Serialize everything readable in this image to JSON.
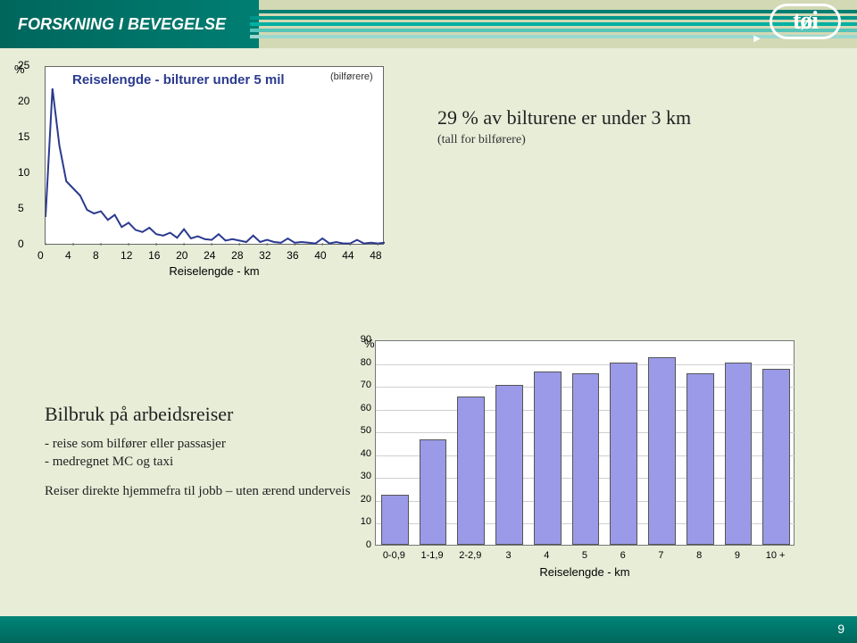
{
  "header": {
    "title": "FORSKNING I BEVEGELSE",
    "logo_text": "tøi",
    "stripe_colors": [
      "#007e72",
      "#00968a",
      "#00b0a2",
      "#55c4b9",
      "#9ad8d0"
    ]
  },
  "line_chart": {
    "type": "line",
    "title": "Reiselengde - bilturer under 5 mil",
    "subtitle_box": "(bilførere)",
    "y_pct_symbol": "%",
    "y_ticks": [
      0,
      5,
      10,
      15,
      20,
      25
    ],
    "ylim": [
      0,
      25
    ],
    "x_ticks": [
      0,
      4,
      8,
      12,
      16,
      20,
      24,
      28,
      32,
      36,
      40,
      44,
      48
    ],
    "xlim": [
      0,
      49
    ],
    "x_axis_title": "Reiselengde - km",
    "line_color": "#2b3a8f",
    "line_width": 2,
    "background_color": "#ffffff",
    "border_color": "#666666",
    "data": [
      [
        0,
        4
      ],
      [
        1,
        22
      ],
      [
        2,
        14
      ],
      [
        3,
        9
      ],
      [
        4,
        8
      ],
      [
        5,
        7
      ],
      [
        6,
        5
      ],
      [
        7,
        4.5
      ],
      [
        8,
        4.8
      ],
      [
        9,
        3.6
      ],
      [
        10,
        4.3
      ],
      [
        11,
        2.6
      ],
      [
        12,
        3.2
      ],
      [
        13,
        2.2
      ],
      [
        14,
        1.9
      ],
      [
        15,
        2.5
      ],
      [
        16,
        1.6
      ],
      [
        17,
        1.4
      ],
      [
        18,
        1.8
      ],
      [
        19,
        1.1
      ],
      [
        20,
        2.3
      ],
      [
        21,
        1.0
      ],
      [
        22,
        1.3
      ],
      [
        23,
        0.9
      ],
      [
        24,
        0.8
      ],
      [
        25,
        1.6
      ],
      [
        26,
        0.7
      ],
      [
        27,
        0.9
      ],
      [
        28,
        0.7
      ],
      [
        29,
        0.5
      ],
      [
        30,
        1.4
      ],
      [
        31,
        0.5
      ],
      [
        32,
        0.8
      ],
      [
        33,
        0.5
      ],
      [
        34,
        0.4
      ],
      [
        35,
        1.0
      ],
      [
        36,
        0.4
      ],
      [
        37,
        0.5
      ],
      [
        38,
        0.4
      ],
      [
        39,
        0.3
      ],
      [
        40,
        1.0
      ],
      [
        41,
        0.3
      ],
      [
        42,
        0.5
      ],
      [
        43,
        0.3
      ],
      [
        44,
        0.3
      ],
      [
        45,
        0.8
      ],
      [
        46,
        0.3
      ],
      [
        47,
        0.4
      ],
      [
        48,
        0.3
      ],
      [
        49,
        0.4
      ]
    ]
  },
  "side_text": {
    "line1": "29 % av bilturene er under 3 km",
    "line2": "(tall for bilførere)"
  },
  "left_text": {
    "heading": "Bilbruk på arbeidsreiser",
    "para1": "- reise som bilfører eller passasjer\n- medregnet MC og taxi",
    "para2": "Reiser direkte hjemmefra til jobb – uten ærend underveis"
  },
  "bar_chart": {
    "type": "bar",
    "y_pct_symbol": "%",
    "y_ticks": [
      0,
      10,
      20,
      30,
      40,
      50,
      60,
      70,
      80,
      90
    ],
    "ylim": [
      0,
      90
    ],
    "categories": [
      "0-0,9",
      "1-1,9",
      "2-2,9",
      "3",
      "4",
      "5",
      "6",
      "7",
      "8",
      "9",
      "10 +"
    ],
    "values": [
      22,
      46,
      65,
      70,
      76,
      75,
      80,
      82,
      75,
      80,
      77
    ],
    "bar_color": "#9a9ae8",
    "bar_border": "#555555",
    "grid_color": "#cfcfcf",
    "background_color": "#ffffff",
    "x_axis_title": "Reiselengde - km"
  },
  "page_number": "9",
  "colors": {
    "page_bg": "#e8edd8",
    "footer_bg": "#007e72"
  }
}
